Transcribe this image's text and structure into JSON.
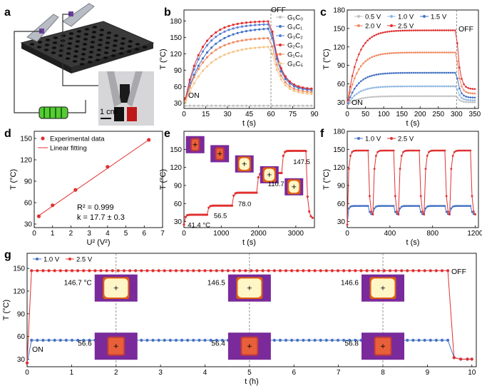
{
  "panels": {
    "a": {
      "label": "a",
      "scale_bar": "1 cm"
    },
    "b": {
      "label": "b",
      "on_label": "ON",
      "off_label": "OFF"
    },
    "c": {
      "label": "c",
      "on_label": "ON",
      "off_label": "OFF"
    },
    "d": {
      "label": "d",
      "r2_text": "R² = 0.999",
      "k_text": "k = 17.7 ± 0.3"
    },
    "e": {
      "label": "e"
    },
    "f": {
      "label": "f"
    },
    "g": {
      "label": "g",
      "on_label": "ON",
      "off_label": "OFF"
    }
  },
  "colors": {
    "blue": "#4472c4",
    "red": "#e03030",
    "grey": "#b8b8b8",
    "orange": "#f08a60",
    "peach": "#f5b57a",
    "lightblue": "#8fb7e0"
  },
  "chart_data": [
    {
      "panel": "b",
      "type": "line",
      "xlabel": "t (s)",
      "ylabel": "T (°C)",
      "xlim": [
        0,
        90
      ],
      "ylim": [
        20,
        200
      ],
      "xticks": [
        0,
        15,
        30,
        45,
        60,
        75,
        90
      ],
      "yticks": [
        30,
        60,
        90,
        120,
        150,
        180
      ],
      "off_x": 60,
      "series": [
        {
          "name": "G₅C₀",
          "color": "#c0c0c0",
          "plateau": 25,
          "tau": 5
        },
        {
          "name": "G₄C₁",
          "color": "#4472c4",
          "plateau": 168,
          "tau": 14
        },
        {
          "name": "G₃C₂",
          "color": "#5b7fd4",
          "plateau": 175,
          "tau": 12
        },
        {
          "name": "G₂C₃",
          "color": "#e03030",
          "plateau": 180,
          "tau": 11
        },
        {
          "name": "G₁C₄",
          "color": "#f08a60",
          "plateau": 150,
          "tau": 13
        },
        {
          "name": "G₀C₅",
          "color": "#f5c68a",
          "plateau": 135,
          "tau": 15
        }
      ]
    },
    {
      "panel": "c",
      "type": "line",
      "xlabel": "t (s)",
      "ylabel": "T (°C)",
      "xlim": [
        0,
        360
      ],
      "ylim": [
        20,
        180
      ],
      "xticks": [
        0,
        50,
        100,
        150,
        200,
        250,
        300,
        350
      ],
      "yticks": [
        30,
        60,
        90,
        120,
        150,
        180
      ],
      "off_x": 300,
      "series": [
        {
          "name": "0.5 V",
          "color": "#c0c0c0",
          "plateau": 40
        },
        {
          "name": "1.0 V",
          "color": "#8fb7e0",
          "plateau": 56
        },
        {
          "name": "1.5 V",
          "color": "#4472c4",
          "plateau": 78
        },
        {
          "name": "2.0 V",
          "color": "#f08a60",
          "plateau": 111
        },
        {
          "name": "2.5 V",
          "color": "#e03030",
          "plateau": 147
        }
      ]
    },
    {
      "panel": "d",
      "type": "scatter",
      "xlabel": "U² (V²)",
      "ylabel": "T (°C)",
      "xlim": [
        0,
        7
      ],
      "ylim": [
        25,
        160
      ],
      "xticks": [
        0,
        1,
        2,
        3,
        4,
        5,
        6,
        7
      ],
      "yticks": [
        30,
        60,
        90,
        120,
        150
      ],
      "legend": [
        "Experimental data",
        "Linear fitting"
      ],
      "x": [
        0.25,
        1.0,
        2.25,
        4.0,
        6.25
      ],
      "y": [
        40.9,
        56.3,
        77.9,
        110.2,
        148.0
      ]
    },
    {
      "panel": "e",
      "type": "line",
      "xlabel": "t (s)",
      "ylabel": "T (°C)",
      "xlim": [
        0,
        3500
      ],
      "ylim": [
        20,
        180
      ],
      "xticks": [
        0,
        1000,
        2000,
        3000
      ],
      "yticks": [
        30,
        60,
        90,
        120,
        150
      ],
      "steps": [
        41.4,
        56.5,
        78.0,
        110.7,
        147.5
      ],
      "step_labels": [
        "41.4 °C",
        "56.5",
        "78.0",
        "110.7",
        "147.5"
      ]
    },
    {
      "panel": "f",
      "type": "line",
      "xlabel": "t (s)",
      "ylabel": "T (°C)",
      "xlim": [
        0,
        1230
      ],
      "ylim": [
        20,
        180
      ],
      "xticks": [
        0,
        400,
        800,
        1200
      ],
      "yticks": [
        30,
        60,
        90,
        120,
        150,
        180
      ],
      "series": [
        {
          "name": "1.0 V",
          "color": "#4472c4",
          "high": 56,
          "low": 42
        },
        {
          "name": "2.5 V",
          "color": "#e03030",
          "high": 148,
          "low": 42
        }
      ]
    },
    {
      "panel": "g",
      "type": "line",
      "xlabel": "t (h)",
      "ylabel": "T (°C)",
      "xlim": [
        0,
        10.1
      ],
      "ylim": [
        20,
        170
      ],
      "xticks": [
        0,
        1,
        2,
        3,
        4,
        5,
        6,
        7,
        8,
        9,
        10
      ],
      "yticks": [
        30,
        60,
        90,
        120,
        150
      ],
      "series": [
        {
          "name": "1.0 V",
          "color": "#4472c4",
          "value": 55
        },
        {
          "name": "2.5 V",
          "color": "#e03030",
          "value": 147
        }
      ],
      "annot_high": [
        "146.7 °C",
        "146.5",
        "146.6"
      ],
      "annot_low": [
        "56.6",
        "56.4",
        "56.8"
      ],
      "annot_x": [
        2,
        5,
        8
      ],
      "off_x": 9.5
    }
  ]
}
